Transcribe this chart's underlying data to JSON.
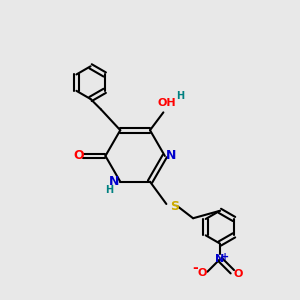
{
  "background_color": "#e8e8e8",
  "bond_color": "#000000",
  "bond_width": 1.5,
  "figsize": [
    3.0,
    3.0
  ],
  "dpi": 100,
  "atom_colors": {
    "C": "#000000",
    "N": "#0000cc",
    "O": "#ff0000",
    "S": "#ccaa00",
    "H": "#008080"
  }
}
